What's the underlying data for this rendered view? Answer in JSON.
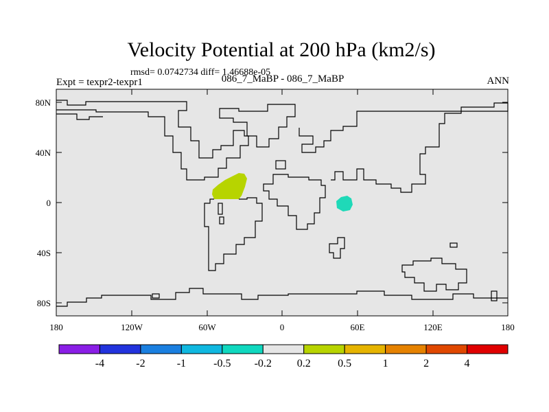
{
  "title": "Velocity Potential at 200 hPa (km2/s)",
  "stats": "rmsd= 0.0742734  diff= 1.46688e-05",
  "experiment": "Expt = texpr2-texpr1",
  "comparison": "086_7_MaBP - 086_7_MaBP",
  "season": "ANN",
  "map": {
    "background_color": "#e6e6e6",
    "coastline_color": "#000000",
    "lat_ticks": [
      "80N",
      "40N",
      "0",
      "40S",
      "80S"
    ],
    "lon_ticks": [
      "180",
      "120W",
      "60W",
      "0",
      "60E",
      "120E",
      "180"
    ],
    "anomalies": [
      {
        "name": "positive-anomaly-atlantic",
        "level": "0.2 to 0.5",
        "color": "#b7d400"
      },
      {
        "name": "negative-anomaly-indian",
        "level": "-0.5 to -0.2",
        "color": "#1fd9b8"
      }
    ]
  },
  "colorbar": {
    "colors": [
      "#8a1ee6",
      "#2233dd",
      "#1a7fe0",
      "#10b8e0",
      "#10d8bf",
      "#e6e6e6",
      "#b8d400",
      "#e6b400",
      "#e68200",
      "#e04800",
      "#e00000"
    ],
    "labels": [
      "-4",
      "-2",
      "-1",
      "-0.5",
      "-0.2",
      "0.2",
      "0.5",
      "1",
      "2",
      "4"
    ]
  }
}
